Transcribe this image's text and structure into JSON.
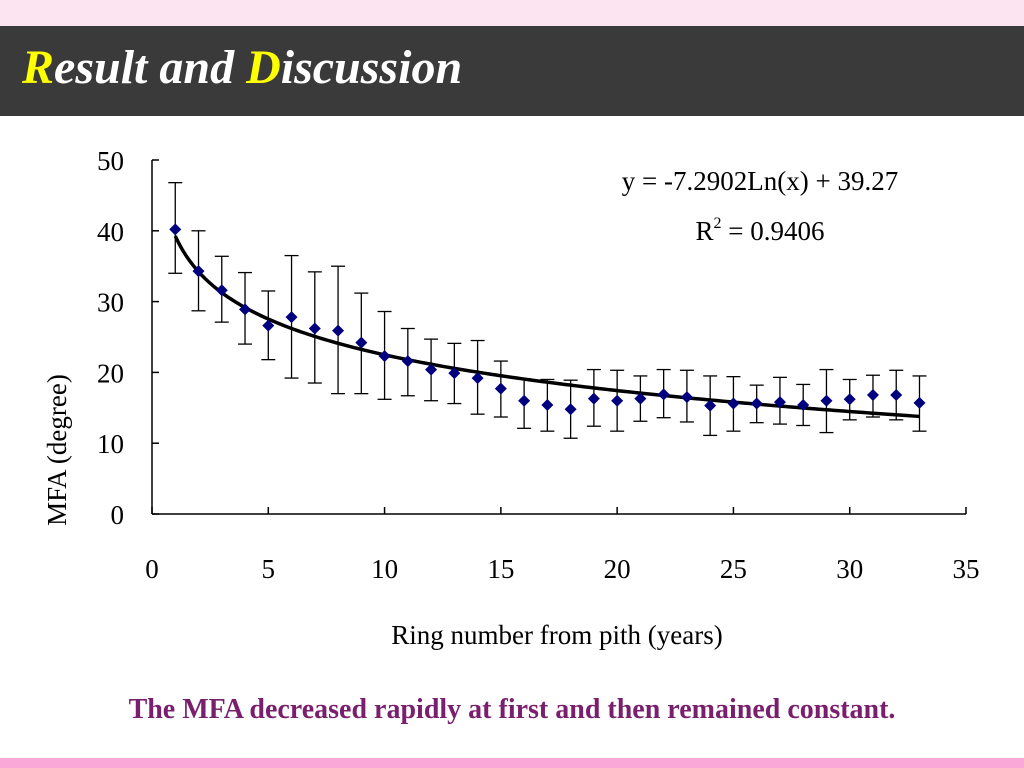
{
  "slide": {
    "title_r": "R",
    "title_part1": "esult and ",
    "title_d": "D",
    "title_part2": "iscussion",
    "caption": "The MFA decreased rapidly at first and then remained constant."
  },
  "colors": {
    "title_bar": "#3a3a3a",
    "title_text": "#ffffff",
    "title_accent": "#ffff00",
    "caption": "#7a1f6e",
    "marker": "#00007f",
    "trendline": "#000000"
  },
  "chart_data": {
    "type": "scatter",
    "xlabel": "Ring number from pith (years)",
    "ylabel": "MFA (degree)",
    "xlim": [
      0,
      35
    ],
    "ylim": [
      0,
      50
    ],
    "xticks": [
      0,
      5,
      10,
      15,
      20,
      25,
      30,
      35
    ],
    "yticks": [
      0,
      10,
      20,
      30,
      40,
      50
    ],
    "grid": false,
    "legend": "none",
    "marker": "diamond",
    "error_bars": true,
    "x": [
      1,
      2,
      3,
      4,
      5,
      6,
      7,
      8,
      9,
      10,
      11,
      12,
      13,
      14,
      15,
      16,
      17,
      18,
      19,
      20,
      21,
      22,
      23,
      24,
      25,
      26,
      27,
      28,
      29,
      30,
      31,
      32,
      33
    ],
    "y": [
      40.2,
      34.3,
      31.6,
      28.9,
      26.6,
      27.8,
      26.2,
      25.9,
      24.2,
      22.3,
      21.6,
      20.4,
      19.9,
      19.2,
      17.7,
      16.0,
      15.4,
      14.8,
      16.3,
      16.0,
      16.3,
      16.9,
      16.5,
      15.3,
      15.6,
      15.6,
      15.8,
      15.4,
      16.0,
      16.2,
      16.8,
      16.8,
      15.7
    ],
    "y_upper": [
      46.8,
      40.0,
      36.4,
      34.1,
      31.5,
      36.5,
      34.2,
      35.0,
      31.2,
      28.6,
      26.2,
      24.7,
      24.1,
      24.5,
      21.6,
      19.1,
      19.0,
      18.9,
      20.4,
      20.3,
      19.5,
      20.4,
      20.3,
      19.5,
      19.4,
      18.2,
      19.3,
      18.3,
      20.4,
      19.0,
      19.6,
      20.3,
      19.5
    ],
    "y_lower": [
      34.0,
      28.7,
      27.1,
      24.0,
      21.8,
      19.2,
      18.5,
      17.0,
      17.0,
      16.2,
      16.7,
      16.0,
      15.6,
      14.1,
      13.7,
      12.1,
      11.7,
      10.7,
      12.4,
      11.7,
      13.1,
      13.6,
      13.0,
      11.1,
      11.7,
      12.9,
      12.7,
      12.5,
      11.5,
      13.3,
      13.7,
      13.3,
      11.7
    ],
    "trendline": {
      "type": "logarithmic",
      "a": -7.2902,
      "b": 39.27,
      "equation": "y = -7.2902Ln(x) + 39.27",
      "r2_label": "R",
      "r2_exp": "2",
      "r2_value": " = 0.9406"
    }
  }
}
